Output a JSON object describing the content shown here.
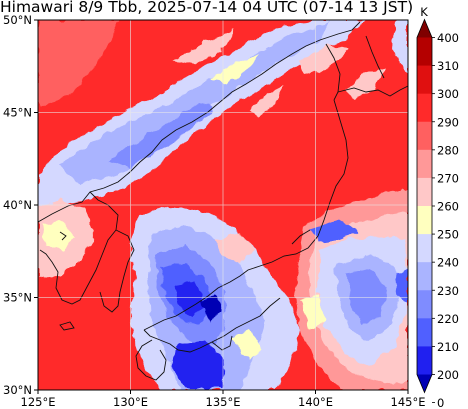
{
  "title": "Himawari 8/9 Tbb, 2025-07-14 04 UTC (07-14 13 JST)",
  "map": {
    "lon_ticks": [
      "125°E",
      "130°E",
      "135°E",
      "140°E",
      "145°E"
    ],
    "lat_ticks": [
      "50°N",
      "45°N",
      "40°N",
      "35°N",
      "30°N"
    ],
    "lon_range": [
      125,
      145
    ],
    "lat_range": [
      30,
      50
    ],
    "gridlines": true
  },
  "colorbar": {
    "unit": "K",
    "labels": [
      "400",
      "310",
      "300",
      "290",
      "280",
      "270",
      "260",
      "250",
      "240",
      "230",
      "220",
      "210",
      "200",
      "0"
    ],
    "colors": [
      "#7f0000",
      "#b40000",
      "#e01010",
      "#ff2a2a",
      "#ff6060",
      "#ff9898",
      "#ffc8c8",
      "#ffffbf",
      "#d4d8ff",
      "#aab4ff",
      "#7f8cff",
      "#5060ff",
      "#2020f0",
      "#0000b4"
    ]
  }
}
